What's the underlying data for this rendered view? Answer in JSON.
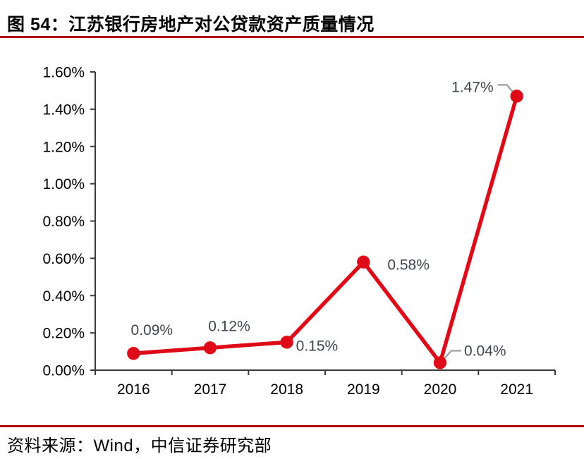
{
  "figure": {
    "title": "图 54：江苏银行房地产对公贷款资产质量情况",
    "source": "资料来源：Wind，中信证券研究部"
  },
  "colors": {
    "series_red": "#DF0A17",
    "rule_red": "#B00000",
    "data_label": "#3F444D",
    "leader_gray": "#A6A6A6",
    "axis_gray": "#3A3A3A",
    "tick_text": "#000000"
  },
  "chart_data": {
    "type": "line",
    "title": "江苏银行房地产对公贷款资产质量情况",
    "categories": [
      "2016",
      "2017",
      "2018",
      "2019",
      "2020",
      "2021"
    ],
    "values": [
      0.09,
      0.12,
      0.15,
      0.58,
      0.04,
      1.47
    ],
    "point_labels": [
      "0.09%",
      "0.12%",
      "0.15%",
      "0.58%",
      "0.04%",
      "1.47%"
    ],
    "unit": "percent",
    "xlabel": "",
    "ylabel": "",
    "ylim": [
      0,
      1.6
    ],
    "y_tick_step": 0.2,
    "y_tick_labels": [
      "0.00%",
      "0.20%",
      "0.40%",
      "0.60%",
      "0.80%",
      "1.00%",
      "1.20%",
      "1.40%",
      "1.60%"
    ],
    "grid": false,
    "legend": false,
    "marker": "circle"
  }
}
